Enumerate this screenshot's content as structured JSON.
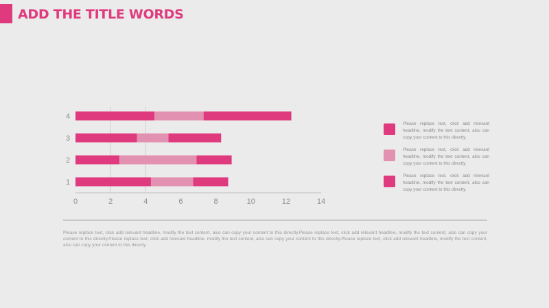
{
  "title": "ADD THE TITLE WORDS",
  "colors": {
    "accent": "#e03a7e",
    "series_dark": "#e03a7e",
    "series_light": "#e391b0",
    "axis_text": "#8c8c8c",
    "grid": "#cfcfcf"
  },
  "legend": [
    {
      "text": "Please replace text, click add relevant headline, modify the text content, also can copy your content to this directly.",
      "color": "#e03a7e"
    },
    {
      "text": "Please replace text, click add relevant headline, modify the text content, also can copy your content to this directly.",
      "color": "#e391b0"
    },
    {
      "text": "Please replace text, click add relevant headline, modify the text content, also can copy your content to this directly.",
      "color": "#e03a7e"
    }
  ],
  "footer": "Please replace text, click add relevant headline, modify the text content, also can copy your content to this directly.Please replace text, click add relevant headline, modify the text content, also can copy your content to this directly.Please replace text, click add relevant headline, modify the text content, also can copy your content to this directly.Please replace text, click add relevant headline, modify the text content, also can copy your content to this directly.",
  "chart_data": {
    "type": "bar",
    "orientation": "horizontal",
    "stacked": true,
    "categories": [
      "1",
      "2",
      "3",
      "4"
    ],
    "series": [
      {
        "values": [
          4.3,
          2.5,
          3.5,
          4.5
        ],
        "color": "#e03a7e"
      },
      {
        "values": [
          2.4,
          4.4,
          1.8,
          2.8
        ],
        "color": "#e391b0"
      },
      {
        "values": [
          2.0,
          2.0,
          3.0,
          5.0
        ],
        "color": "#e03a7e"
      }
    ],
    "x_ticks": [
      "0",
      "2",
      "4",
      "6",
      "8",
      "10",
      "12",
      "14"
    ],
    "xlim": [
      0,
      14
    ],
    "grid": "vertical lines at 2 and 4",
    "title": "",
    "xlabel": "",
    "ylabel": ""
  }
}
